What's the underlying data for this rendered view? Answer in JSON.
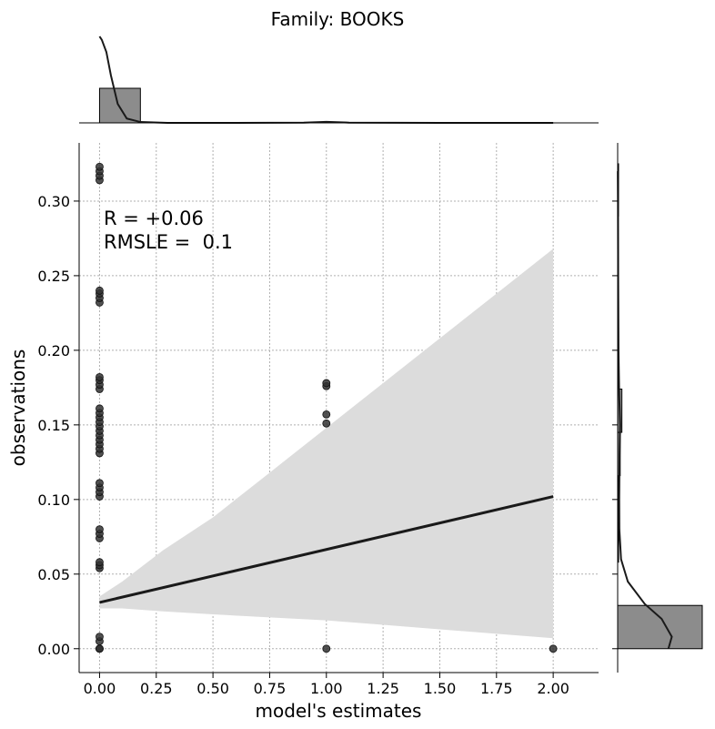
{
  "title": "Family: BOOKS",
  "annotation": {
    "r_text": "R = +0.06",
    "rmsle_text": "RMSLE =  0.1"
  },
  "colors": {
    "points": "#333333",
    "line": "#1a1a1a",
    "band": "#dcdcdc",
    "hist_fill": "#8c8c8c",
    "grid": "#b0b0b0"
  },
  "chart_data": {
    "type": "scatter",
    "title": "Family: BOOKS",
    "xlabel": "model's estimates",
    "ylabel": "observations",
    "xlim": [
      -0.09,
      2.2
    ],
    "ylim": [
      -0.016,
      0.339
    ],
    "x_ticks": [
      "0.00",
      "0.25",
      "0.50",
      "0.75",
      "1.00",
      "1.25",
      "1.50",
      "1.75",
      "2.00"
    ],
    "y_ticks": [
      "0.00",
      "0.05",
      "0.10",
      "0.15",
      "0.20",
      "0.25",
      "0.30"
    ],
    "grid": true,
    "points": [
      [
        0,
        0.0
      ],
      [
        0,
        0.0
      ],
      [
        0,
        0.0
      ],
      [
        0,
        0.005
      ],
      [
        0,
        0.008
      ],
      [
        0,
        0.054
      ],
      [
        0,
        0.056
      ],
      [
        0,
        0.058
      ],
      [
        0,
        0.074
      ],
      [
        0,
        0.077
      ],
      [
        0,
        0.08
      ],
      [
        0,
        0.102
      ],
      [
        0,
        0.105
      ],
      [
        0,
        0.108
      ],
      [
        0,
        0.111
      ],
      [
        0,
        0.131
      ],
      [
        0,
        0.134
      ],
      [
        0,
        0.137
      ],
      [
        0,
        0.14
      ],
      [
        0,
        0.143
      ],
      [
        0,
        0.146
      ],
      [
        0,
        0.149
      ],
      [
        0,
        0.152
      ],
      [
        0,
        0.155
      ],
      [
        0,
        0.158
      ],
      [
        0,
        0.161
      ],
      [
        0,
        0.174
      ],
      [
        0,
        0.177
      ],
      [
        0,
        0.18
      ],
      [
        0,
        0.182
      ],
      [
        0,
        0.232
      ],
      [
        0,
        0.235
      ],
      [
        0,
        0.238
      ],
      [
        0,
        0.24
      ],
      [
        0,
        0.314
      ],
      [
        0,
        0.317
      ],
      [
        0,
        0.32
      ],
      [
        0,
        0.323
      ],
      [
        1,
        0.0
      ],
      [
        1,
        0.151
      ],
      [
        1,
        0.157
      ],
      [
        1,
        0.176
      ],
      [
        1,
        0.178
      ],
      [
        2,
        0.0
      ]
    ],
    "regression": {
      "x": [
        0,
        2
      ],
      "y": [
        0.031,
        0.102
      ]
    },
    "confidence_band": {
      "x": [
        0,
        0.1,
        0.28,
        0.5,
        0.75,
        1.0,
        1.25,
        1.5,
        1.75,
        2.0
      ],
      "upper": [
        0.035,
        0.045,
        0.066,
        0.088,
        0.118,
        0.148,
        0.178,
        0.208,
        0.238,
        0.268
      ],
      "lower": [
        0.027,
        0.027,
        0.025,
        0.023,
        0.021,
        0.019,
        0.016,
        0.013,
        0.01,
        0.007
      ]
    },
    "x_marginal": {
      "bin_range": [
        0,
        0.18
      ],
      "kde_x": [
        0.0,
        0.01,
        0.03,
        0.05,
        0.08,
        0.12,
        0.18,
        0.3,
        0.6,
        0.9,
        1.0,
        1.1,
        1.5,
        2.0
      ],
      "kde_density": [
        1.0,
        0.96,
        0.82,
        0.55,
        0.22,
        0.05,
        0.01,
        0.0,
        0.0,
        0.003,
        0.012,
        0.003,
        0.0,
        0.0
      ]
    },
    "y_marginal": {
      "bins": [
        {
          "range": [
            0.0,
            0.029
          ],
          "density": 1.0
        },
        {
          "range": [
            0.058,
            0.087
          ],
          "density": 0.006
        },
        {
          "range": [
            0.087,
            0.116
          ],
          "density": 0.006
        },
        {
          "range": [
            0.116,
            0.145
          ],
          "density": 0.03
        },
        {
          "range": [
            0.145,
            0.174
          ],
          "density": 0.05
        },
        {
          "range": [
            0.174,
            0.203
          ],
          "density": 0.01
        },
        {
          "range": [
            0.232,
            0.261
          ],
          "density": 0.005
        },
        {
          "range": [
            0.29,
            0.319
          ],
          "density": 0.005
        },
        {
          "range": [
            0.319,
            0.325
          ],
          "density": 0.005
        }
      ],
      "kde_y": [
        0.0,
        0.008,
        0.02,
        0.03,
        0.045,
        0.06,
        0.08,
        0.1,
        0.13,
        0.15,
        0.17,
        0.2,
        0.25,
        0.3,
        0.32
      ],
      "kde_density": [
        0.6,
        0.64,
        0.52,
        0.32,
        0.12,
        0.04,
        0.02,
        0.018,
        0.022,
        0.03,
        0.018,
        0.01,
        0.006,
        0.004,
        0.002
      ]
    }
  }
}
